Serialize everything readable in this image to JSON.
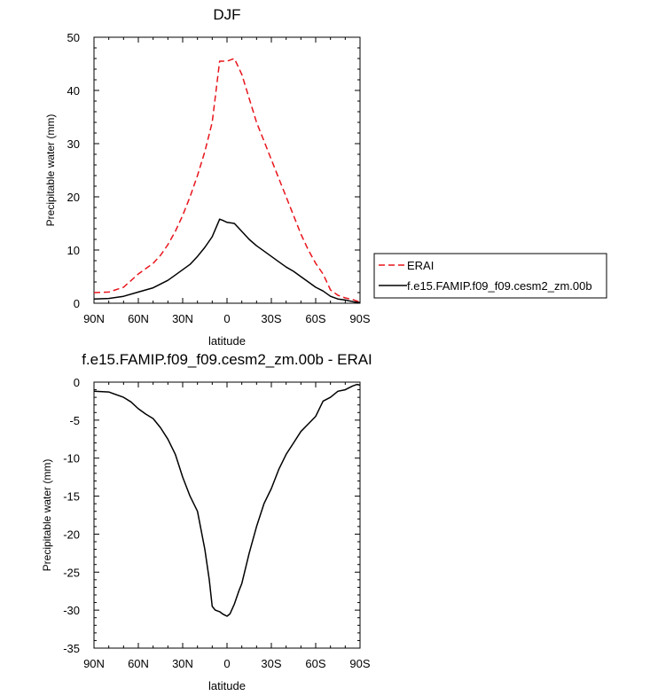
{
  "chart_data": [
    {
      "type": "line",
      "title": "DJF",
      "xlabel": "latitude",
      "ylabel": "Precipitable water (mm)",
      "xlim": [
        90,
        -90
      ],
      "ylim": [
        0,
        50
      ],
      "xticks": [
        90,
        60,
        30,
        0,
        -30,
        -60,
        -90
      ],
      "xtick_labels": [
        "90N",
        "60N",
        "30N",
        "0",
        "30S",
        "60S",
        "90S"
      ],
      "yticks": [
        0,
        10,
        20,
        30,
        40,
        50
      ],
      "ytick_labels": [
        "0",
        "10",
        "20",
        "30",
        "40",
        "50"
      ],
      "legend_position": "right",
      "series": [
        {
          "name": "ERAI",
          "color": "#e8141c",
          "dash": "dashed",
          "x": [
            90,
            80,
            70,
            60,
            55,
            50,
            45,
            40,
            35,
            30,
            25,
            20,
            15,
            10,
            5,
            0,
            -5,
            -10,
            -15,
            -20,
            -25,
            -30,
            -35,
            -40,
            -45,
            -50,
            -55,
            -60,
            -65,
            -70,
            -75,
            -80,
            -85,
            -88,
            -90
          ],
          "y": [
            2,
            2.1,
            3,
            5.5,
            6.5,
            7.5,
            9,
            11,
            13.5,
            16.5,
            20,
            24,
            28.5,
            34,
            45.5,
            45.5,
            46,
            43,
            38.5,
            34,
            30.5,
            27,
            23.5,
            20,
            16.5,
            13,
            10,
            7.5,
            5.5,
            2.5,
            1.5,
            1,
            0.7,
            0.4,
            0.2
          ]
        },
        {
          "name": "f.e15.FAMIP.f09_f09.cesm2_zm.00b",
          "color": "#000000",
          "dash": "solid",
          "x": [
            90,
            80,
            70,
            60,
            50,
            40,
            35,
            30,
            25,
            20,
            15,
            10,
            5,
            3,
            0,
            -5,
            -10,
            -15,
            -20,
            -25,
            -30,
            -35,
            -40,
            -45,
            -50,
            -55,
            -60,
            -65,
            -70,
            -75,
            -80,
            -85,
            -90
          ],
          "y": [
            0.8,
            0.9,
            1.3,
            2.1,
            2.9,
            4.3,
            5.3,
            6.3,
            7.3,
            8.8,
            10.5,
            12.5,
            15.8,
            15.6,
            15.2,
            15,
            13.5,
            12,
            10.8,
            9.8,
            8.8,
            7.8,
            6.8,
            6,
            5,
            4,
            3,
            2.3,
            1.3,
            0.8,
            0.6,
            0.3,
            0.1
          ]
        }
      ]
    },
    {
      "type": "line",
      "title": "f.e15.FAMIP.f09_f09.cesm2_zm.00b - ERAI",
      "xlabel": "latitude",
      "ylabel": "Precipitable water (mm)",
      "xlim": [
        90,
        -90
      ],
      "ylim": [
        -35,
        0
      ],
      "xticks": [
        90,
        60,
        30,
        0,
        -30,
        -60,
        -90
      ],
      "xtick_labels": [
        "90N",
        "60N",
        "30N",
        "0",
        "30S",
        "60S",
        "90S"
      ],
      "yticks": [
        0,
        -5,
        -10,
        -15,
        -20,
        -25,
        -30,
        -35
      ],
      "ytick_labels": [
        "0",
        "-5",
        "-10",
        "-15",
        "-20",
        "-25",
        "-30",
        "-35"
      ],
      "series": [
        {
          "color": "#000000",
          "dash": "solid",
          "x": [
            90,
            80,
            70,
            65,
            60,
            55,
            50,
            45,
            40,
            35,
            30,
            25,
            20,
            15,
            12,
            10,
            8,
            5,
            3,
            0,
            -2,
            -5,
            -8,
            -10,
            -15,
            -20,
            -25,
            -30,
            -35,
            -40,
            -45,
            -50,
            -55,
            -60,
            -65,
            -70,
            -75,
            -80,
            -85,
            -88,
            -90
          ],
          "y": [
            -1.2,
            -1.3,
            -2,
            -2.6,
            -3.5,
            -4.2,
            -4.8,
            -6,
            -7.5,
            -9.5,
            -12.5,
            -15,
            -17,
            -22,
            -26,
            -29.5,
            -30,
            -30.2,
            -30.5,
            -30.8,
            -30.5,
            -29.2,
            -27.5,
            -26.5,
            -22.5,
            -19,
            -16,
            -14,
            -11.5,
            -9.5,
            -8,
            -6.5,
            -5.5,
            -4.5,
            -2.5,
            -2,
            -1.2,
            -1,
            -0.5,
            -0.3,
            -0.4
          ]
        }
      ]
    }
  ]
}
